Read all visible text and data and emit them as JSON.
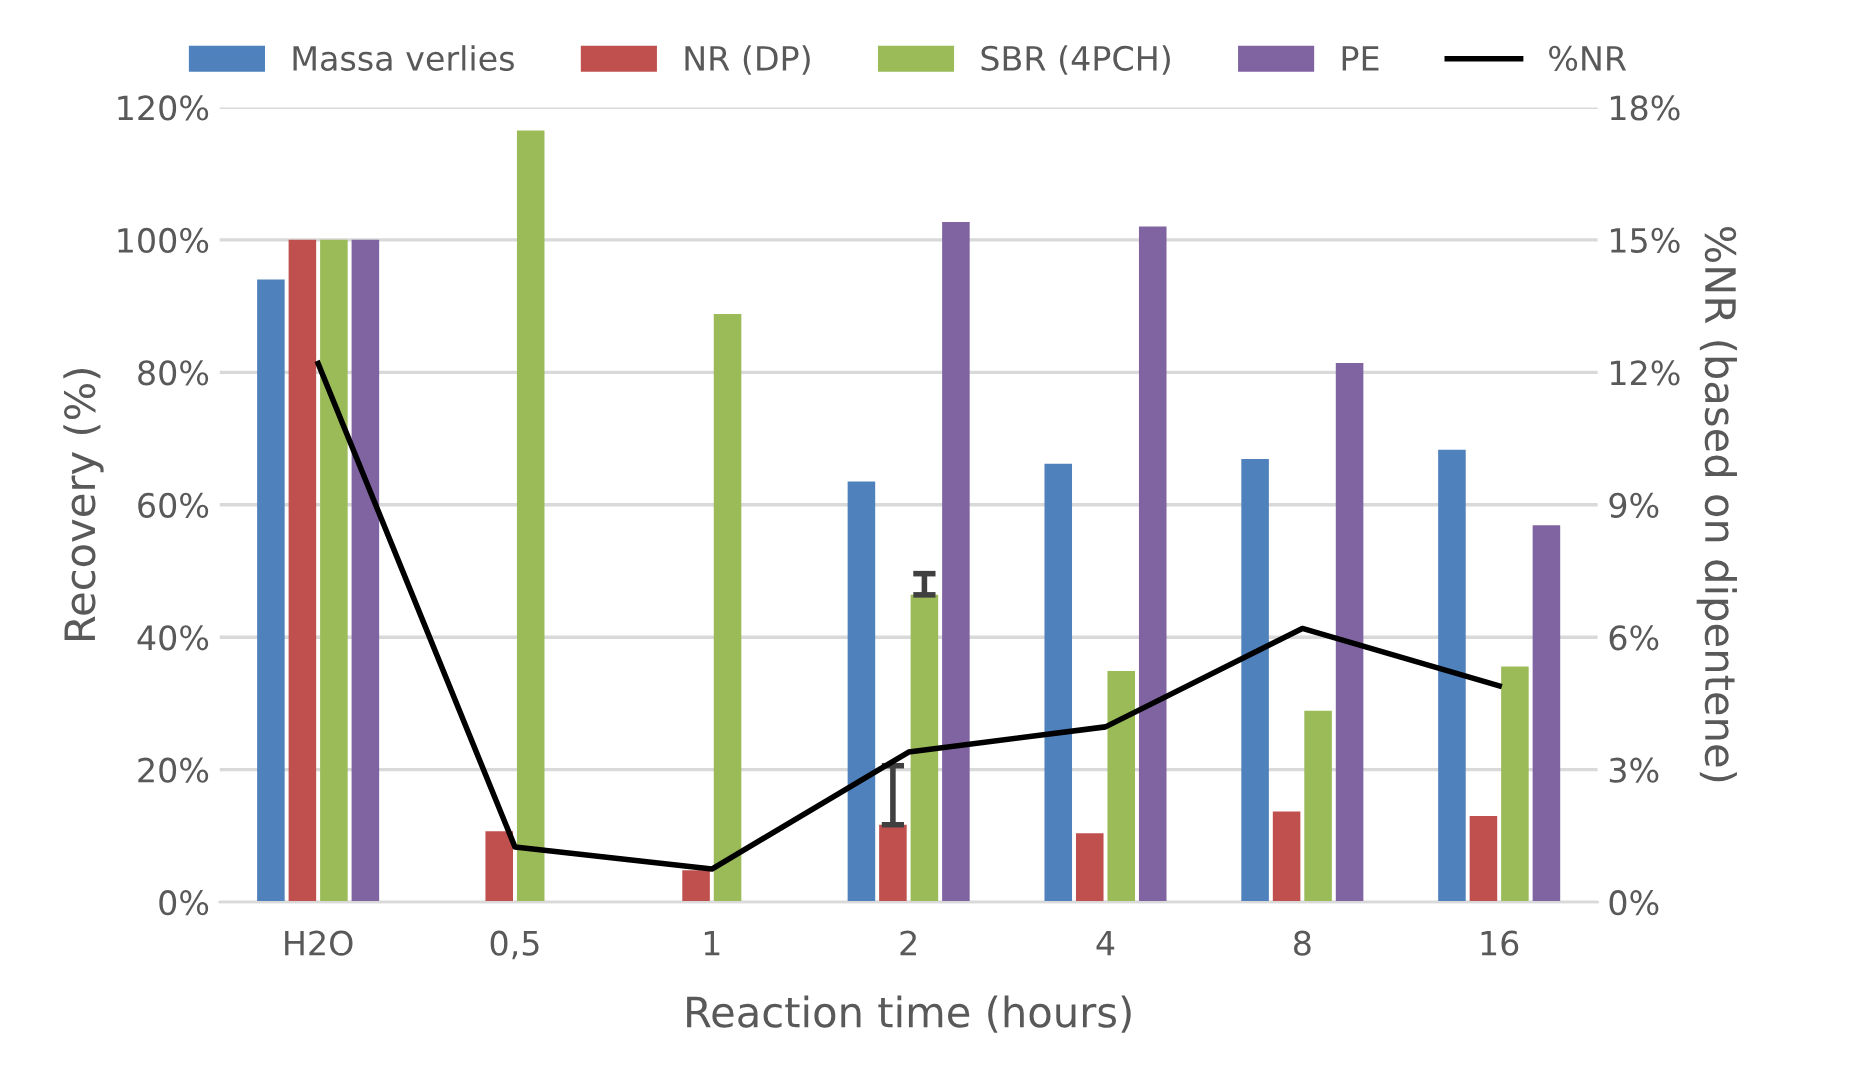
{
  "chart_data": {
    "type": "bar",
    "xlabel": "Reaction time (hours)",
    "ylabel": "Recovery (%)",
    "y2label": "%NR (based on dipentene)",
    "categories": [
      "H2O",
      "0,5",
      "1",
      "2",
      "4",
      "8",
      "16"
    ],
    "series": [
      {
        "name": "Massa verlies",
        "color": "#4f81bd",
        "values": [
          94,
          null,
          null,
          63.5,
          66.2,
          66.9,
          68.3
        ]
      },
      {
        "name": "NR (DP)",
        "color": "#c0504d",
        "values": [
          100,
          10.7,
          4.8,
          11.7,
          10.4,
          13.7,
          13.0
        ],
        "errors": [
          null,
          null,
          null,
          [
            11.7,
            20.6
          ],
          null,
          null,
          null
        ]
      },
      {
        "name": "SBR (4PCH)",
        "color": "#9bbb59",
        "values": [
          100,
          116.5,
          88.8,
          46.4,
          34.9,
          28.9,
          35.6
        ],
        "errors": [
          null,
          null,
          null,
          [
            46.4,
            49.6
          ],
          null,
          null,
          null
        ]
      },
      {
        "name": "PE",
        "color": "#8064a2",
        "values": [
          100,
          null,
          null,
          102.7,
          102.0,
          81.4,
          56.9
        ]
      },
      {
        "name": "%NR",
        "type": "line",
        "axis": "y2",
        "color": "#000000",
        "values": [
          12.2,
          1.25,
          0.75,
          3.4,
          3.97,
          6.2,
          4.9
        ]
      }
    ],
    "ylim": [
      0,
      120
    ],
    "yticks": [
      {
        "value": 0,
        "label": "0%"
      },
      {
        "value": 20,
        "label": "20%"
      },
      {
        "value": 40,
        "label": "40%"
      },
      {
        "value": 60,
        "label": "60%"
      },
      {
        "value": 80,
        "label": "80%"
      },
      {
        "value": 100,
        "label": "100%"
      },
      {
        "value": 120,
        "label": "120%"
      }
    ],
    "y2lim": [
      0,
      18
    ],
    "y2ticks": [
      {
        "value": 0,
        "label": "0%"
      },
      {
        "value": 3,
        "label": "3%"
      },
      {
        "value": 6,
        "label": "6%"
      },
      {
        "value": 9,
        "label": "9%"
      },
      {
        "value": 12,
        "label": "12%"
      },
      {
        "value": 15,
        "label": "15%"
      },
      {
        "value": 18,
        "label": "18%"
      }
    ],
    "grid": "y",
    "legend": "top",
    "marker": "none",
    "line_style": "solid"
  }
}
